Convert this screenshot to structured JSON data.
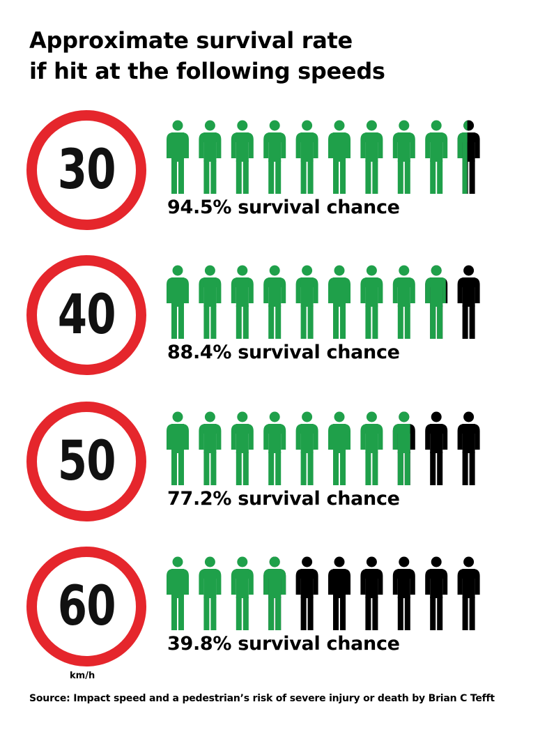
{
  "title_line1": "Approximate survival rate",
  "title_line2": "if hit at the following speeds",
  "unit_label": "km/h",
  "source": "Source:  Impact speed and a pedestrian’s risk of severe injury or death by Brian C Tefft",
  "colors": {
    "survive": "#1fa04a",
    "fatal": "#000000",
    "sign_ring": "#e5262c"
  },
  "rows": [
    {
      "speed": "30",
      "label": "94.5% survival chance"
    },
    {
      "speed": "40",
      "label": "88.4% survival chance"
    },
    {
      "speed": "50",
      "label": "77.2% survival chance"
    },
    {
      "speed": "60",
      "label": "39.8% survival chance"
    }
  ],
  "chart_data": {
    "type": "bar",
    "title": "Approximate survival rate if hit at the following speeds",
    "categories": [
      "30",
      "40",
      "50",
      "60"
    ],
    "xlabel": "km/h",
    "values": [
      94.5,
      88.4,
      77.2,
      39.8
    ],
    "icons_per_row": 10,
    "ylim": [
      0,
      100
    ]
  }
}
